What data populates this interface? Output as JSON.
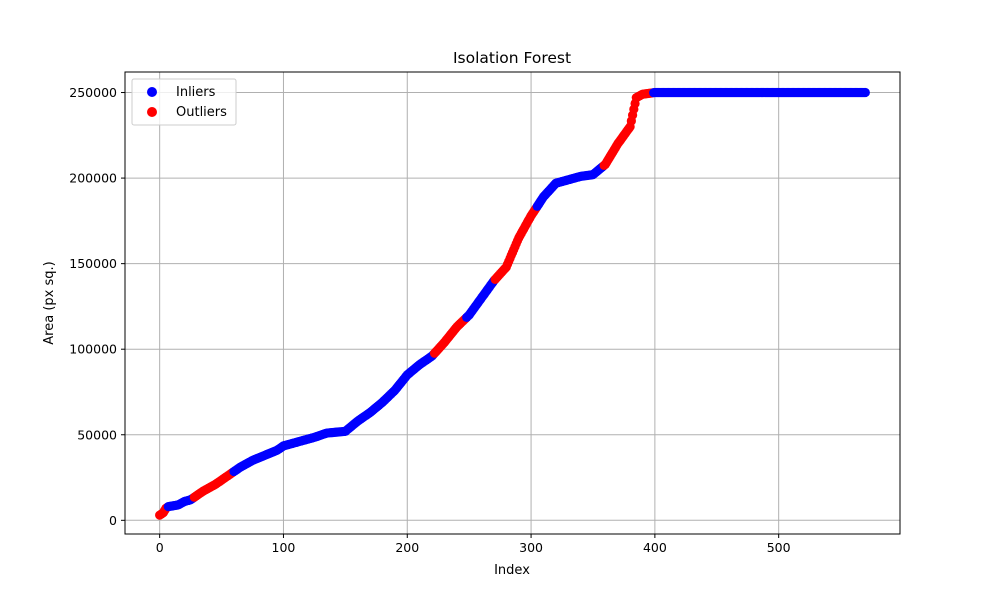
{
  "chart_data": {
    "type": "scatter",
    "title": "Isolation Forest",
    "xlabel": "Index",
    "ylabel": "Area (px sq.)",
    "xlim": [
      -28,
      598
    ],
    "ylim": [
      -8000,
      262000
    ],
    "xticks": [
      0,
      100,
      200,
      300,
      400,
      500
    ],
    "yticks": [
      0,
      50000,
      100000,
      150000,
      200000,
      250000
    ],
    "xtick_labels": [
      "0",
      "100",
      "200",
      "300",
      "400",
      "500"
    ],
    "ytick_labels": [
      "0",
      "50000",
      "100000",
      "150000",
      "200000",
      "250000"
    ],
    "grid": true,
    "legend_position": "top-left",
    "n_points": 571,
    "series": [
      {
        "name": "Inliers",
        "color": "#0000ff",
        "x_ranges": [
          [
            7,
            27
          ],
          [
            60,
            221
          ],
          [
            248,
            270
          ],
          [
            305,
            358
          ],
          [
            399,
            570
          ]
        ]
      },
      {
        "name": "Outliers",
        "color": "#ff0000",
        "x_ranges": [
          [
            0,
            6
          ],
          [
            28,
            59
          ],
          [
            222,
            247
          ],
          [
            271,
            304
          ],
          [
            359,
            398
          ]
        ]
      }
    ],
    "curve_knots": [
      [
        0,
        3000
      ],
      [
        3,
        4500
      ],
      [
        5,
        7000
      ],
      [
        7,
        8000
      ],
      [
        15,
        9000
      ],
      [
        20,
        11000
      ],
      [
        25,
        12000
      ],
      [
        35,
        17000
      ],
      [
        45,
        21000
      ],
      [
        55,
        26000
      ],
      [
        65,
        31000
      ],
      [
        75,
        35000
      ],
      [
        85,
        38000
      ],
      [
        95,
        41000
      ],
      [
        100,
        43500
      ],
      [
        110,
        45500
      ],
      [
        125,
        48500
      ],
      [
        135,
        51000
      ],
      [
        150,
        52000
      ],
      [
        160,
        58000
      ],
      [
        170,
        63000
      ],
      [
        180,
        69000
      ],
      [
        190,
        76000
      ],
      [
        200,
        85000
      ],
      [
        210,
        91000
      ],
      [
        220,
        96000
      ],
      [
        230,
        104000
      ],
      [
        240,
        113000
      ],
      [
        250,
        120000
      ],
      [
        260,
        130000
      ],
      [
        270,
        140000
      ],
      [
        280,
        148000
      ],
      [
        290,
        165000
      ],
      [
        300,
        178000
      ],
      [
        310,
        189000
      ],
      [
        320,
        197000
      ],
      [
        330,
        199000
      ],
      [
        340,
        201000
      ],
      [
        350,
        202000
      ],
      [
        360,
        208000
      ],
      [
        370,
        220000
      ],
      [
        380,
        230000
      ],
      [
        385,
        247000
      ],
      [
        390,
        249000
      ],
      [
        400,
        250000
      ],
      [
        570,
        250000
      ]
    ]
  }
}
